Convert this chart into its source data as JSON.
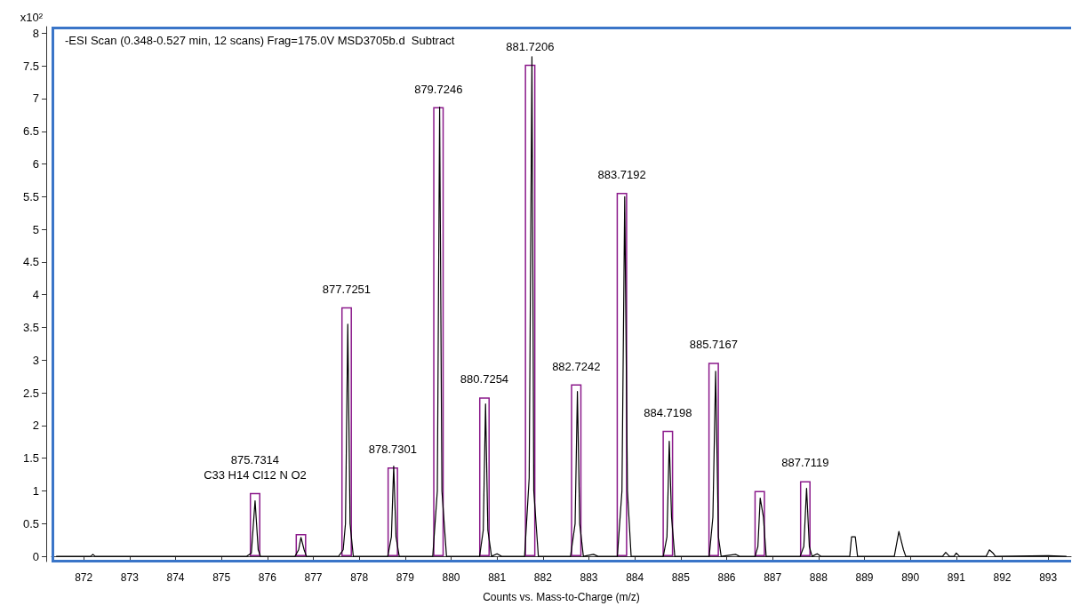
{
  "chart_data": {
    "type": "line",
    "title": "-ESI Scan (0.348-0.527 min, 12 scans) Frag=175.0V MSD3705b.d  Subtract",
    "xlabel": "Counts vs. Mass-to-Charge (m/z)",
    "ylabel": "x10²",
    "xlim": [
      871.3,
      893.5
    ],
    "xticks": [
      872,
      873,
      874,
      875,
      876,
      877,
      878,
      879,
      880,
      881,
      882,
      883,
      884,
      885,
      886,
      887,
      888,
      889,
      890,
      891,
      892,
      893
    ],
    "ylim": [
      -0.08,
      8.1
    ],
    "yticks": [
      0,
      0.5,
      1,
      1.5,
      2,
      2.5,
      3,
      3.5,
      4,
      4.5,
      5,
      5.5,
      6,
      6.5,
      7,
      7.5,
      8
    ],
    "marker": "none",
    "annotations": [
      {
        "text": "875.7314",
        "x": 875.7314,
        "y": 0.97
      },
      {
        "text": "C33 H14 Cl12 N O2",
        "x": 875.7314,
        "y": 0.97
      },
      {
        "text": "877.7251",
        "x": 877.7251,
        "y": 3.81
      },
      {
        "text": "878.7301",
        "x": 878.7301,
        "y": 1.36
      },
      {
        "text": "879.7246",
        "x": 879.7246,
        "y": 6.87
      },
      {
        "text": "880.7254",
        "x": 880.7254,
        "y": 2.43
      },
      {
        "text": "881.7206",
        "x": 881.7206,
        "y": 7.52
      },
      {
        "text": "882.7242",
        "x": 882.7242,
        "y": 2.63
      },
      {
        "text": "883.7192",
        "x": 883.7192,
        "y": 5.56
      },
      {
        "text": "884.7198",
        "x": 884.7198,
        "y": 1.92
      },
      {
        "text": "885.7167",
        "x": 885.7167,
        "y": 2.96
      },
      {
        "text": "887.7119",
        "x": 887.7119,
        "y": 1.15
      }
    ],
    "series": [
      {
        "type": "bar",
        "color": "#8b1a8b",
        "x": [
          875.7314,
          876.73,
          877.7251,
          878.7301,
          879.7246,
          880.7254,
          881.7206,
          882.7242,
          883.7192,
          884.7198,
          885.7167,
          886.72,
          887.7119
        ],
        "values": [
          0.97,
          0.34,
          3.81,
          1.36,
          6.87,
          2.43,
          7.52,
          2.63,
          5.56,
          1.92,
          2.96,
          1.0,
          1.15
        ]
      },
      {
        "color": "#000000",
        "x": [
          871.4,
          872.15,
          872.2,
          872.25,
          875.55,
          875.65,
          875.7314,
          875.8,
          875.85,
          876.6,
          876.68,
          876.73,
          876.8,
          876.85,
          877.55,
          877.65,
          877.7,
          877.75,
          877.8,
          877.87,
          878.62,
          878.7,
          878.75,
          878.8,
          878.87,
          879.6,
          879.7,
          879.75,
          879.8,
          879.9,
          880.62,
          880.7,
          880.75,
          880.8,
          880.88,
          881.0,
          881.1,
          881.6,
          881.7,
          881.76,
          881.8,
          881.9,
          882.6,
          882.7,
          882.75,
          882.8,
          882.88,
          883.1,
          883.2,
          883.62,
          883.72,
          883.78,
          883.84,
          883.92,
          884.62,
          884.7,
          884.75,
          884.8,
          884.87,
          885.62,
          885.7,
          885.76,
          885.82,
          885.88,
          886.2,
          886.28,
          886.62,
          886.68,
          886.73,
          886.8,
          886.86,
          887.6,
          887.68,
          887.74,
          887.8,
          887.86,
          887.97,
          888.05,
          888.68,
          888.72,
          888.8,
          888.85,
          889.65,
          889.75,
          889.85,
          889.9,
          890.7,
          890.77,
          890.85,
          890.95,
          891.0,
          891.07,
          891.65,
          891.72,
          891.8,
          891.85,
          893.0,
          893.4
        ],
        "values": [
          0,
          0,
          0.03,
          0,
          0,
          0.05,
          0.85,
          0.1,
          0,
          0,
          0.1,
          0.29,
          0.1,
          0,
          0,
          0.1,
          0.5,
          3.55,
          0.5,
          0,
          0,
          0.3,
          1.38,
          0.3,
          0,
          0,
          1.0,
          6.87,
          1.0,
          0,
          0,
          0.4,
          2.33,
          0.4,
          0,
          0.04,
          0,
          0,
          1.2,
          7.64,
          1.0,
          0,
          0,
          0.5,
          2.52,
          0.5,
          0,
          0.03,
          0,
          0,
          1.0,
          5.5,
          1.0,
          0,
          0,
          0.3,
          1.76,
          0.6,
          0,
          0,
          0.6,
          2.83,
          0.3,
          0,
          0.03,
          0,
          0,
          0.15,
          0.89,
          0.6,
          0,
          0,
          0.15,
          1.04,
          0.15,
          0,
          0.04,
          0,
          0,
          0.3,
          0.3,
          0,
          0,
          0.38,
          0.1,
          0,
          0,
          0.06,
          0,
          0,
          0.05,
          0,
          0,
          0.1,
          0.05,
          0,
          0.01,
          0
        ]
      }
    ]
  }
}
